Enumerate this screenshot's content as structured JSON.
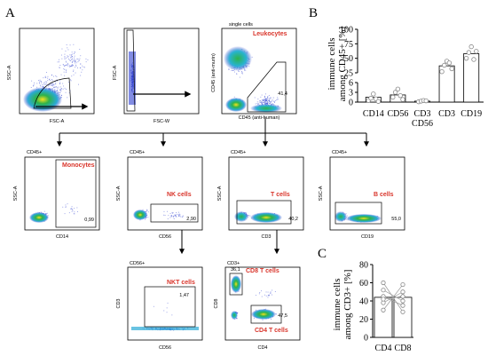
{
  "panel_letters": {
    "a": "A",
    "b": "B",
    "c": "C"
  },
  "row1": {
    "p1": {
      "y": "SSC-A",
      "x": "FSC-A"
    },
    "p2": {
      "y": "FSC-A",
      "x": "FSC-W"
    },
    "p3": {
      "head": "single cells",
      "y": "CD45 (anti-murin)",
      "x": "CD45 (anti-human)",
      "gate": "Leukocytes",
      "pct": "41,4"
    }
  },
  "row2": {
    "p4": {
      "head": "CD45+",
      "y": "SSC-A",
      "x": "CD14",
      "gate": "Monocytes",
      "pct": "0,99"
    },
    "p5": {
      "head": "CD45+",
      "y": "SSC-A",
      "x": "CD56",
      "gate": "NK cells",
      "pct": "2,90"
    },
    "p6": {
      "head": "CD45+",
      "y": "SSC-A",
      "x": "CD3",
      "gate": "T cells",
      "pct": "40,2"
    },
    "p7": {
      "head": "CD45+",
      "y": "SSC-A",
      "x": "CD19",
      "gate": "B cells",
      "pct": "55,0"
    }
  },
  "row3": {
    "p8": {
      "head": "CD56+",
      "y": "CD3",
      "x": "CD56",
      "gate": "NKT cells",
      "pct": "1,47"
    },
    "p9": {
      "head": "CD3+",
      "y": "CD8",
      "x": "CD4",
      "gate1": "CD8 T cells",
      "pct1": "36,1",
      "gate2": "CD4 T cells",
      "pct2": "47,5"
    }
  },
  "colors": {
    "gate_label": "#d9352b",
    "dots": "#2f3fd0",
    "dense": "#2ca02c",
    "hot": "#f2d11c"
  },
  "chart_data": [
    {
      "type": "bar",
      "panel": "B",
      "ylabel_line1": "immune cells",
      "ylabel_line2": "among CD45+ [%]",
      "categories": [
        "CD14",
        "CD56",
        "CD3 CD56",
        "CD3",
        "CD19"
      ],
      "cat_lines": [
        [
          "CD14"
        ],
        [
          "CD56"
        ],
        [
          "CD3",
          "CD56"
        ],
        [
          "CD3"
        ],
        [
          "CD19"
        ]
      ],
      "values": [
        1.5,
        2.2,
        0.3,
        37,
        58
      ],
      "yticks": [
        "0",
        "3",
        "6",
        "25",
        "50",
        "75",
        "100"
      ],
      "points": [
        [
          0.5,
          1.2,
          2.5,
          1.0,
          0.2
        ],
        [
          1.5,
          3.0,
          4.0,
          2.0,
          0.8
        ],
        [
          0.1,
          0.3,
          0.5,
          0.4
        ],
        [
          27,
          38,
          45,
          42,
          32
        ],
        [
          50,
          60,
          70,
          48,
          62
        ]
      ],
      "ylim_lower": [
        0,
        6
      ],
      "ylim_upper": [
        25,
        100
      ]
    },
    {
      "type": "bar",
      "panel": "C",
      "ylabel_line1": "immune cells",
      "ylabel_line2": "among CD3+ [%]",
      "categories": [
        "CD4",
        "CD8"
      ],
      "values": [
        44,
        44
      ],
      "yticks": [
        "0",
        "20",
        "40",
        "60",
        "80"
      ],
      "ylim": [
        0,
        80
      ],
      "pairs": [
        [
          60,
          28
        ],
        [
          38,
          50
        ],
        [
          45,
          35
        ],
        [
          30,
          58
        ],
        [
          52,
          40
        ],
        [
          42,
          45
        ]
      ]
    }
  ]
}
